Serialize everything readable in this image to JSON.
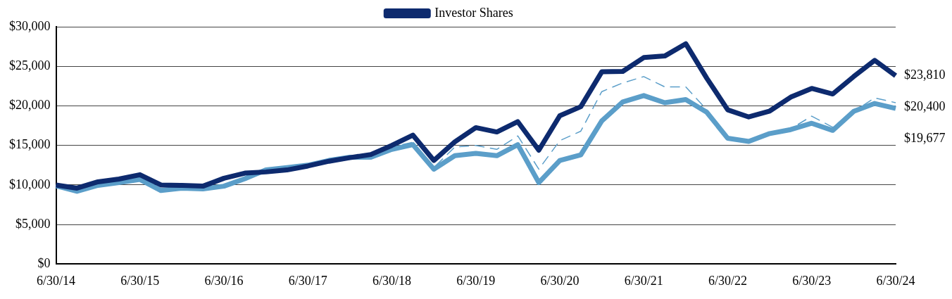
{
  "chart_data": {
    "type": "line",
    "categories": [
      "6/30/14",
      null,
      null,
      null,
      "6/30/15",
      null,
      null,
      null,
      "6/30/16",
      null,
      null,
      null,
      "6/30/17",
      null,
      null,
      null,
      "6/30/18",
      null,
      null,
      null,
      "6/30/19",
      null,
      null,
      null,
      "6/30/20",
      null,
      null,
      null,
      "6/30/21",
      null,
      null,
      null,
      "6/30/22",
      null,
      null,
      null,
      "6/30/23",
      null,
      null,
      null,
      "6/30/24"
    ],
    "series": [
      {
        "name": "Investor Shares",
        "color": "#0d2a6e",
        "values": [
          10000,
          9600,
          10400,
          10750,
          11300,
          10000,
          9950,
          9850,
          10850,
          11500,
          11650,
          11900,
          12400,
          13000,
          13450,
          13850,
          15000,
          16300,
          13100,
          15450,
          17250,
          16700,
          18000,
          14400,
          18750,
          19900,
          24300,
          24350,
          26100,
          26300,
          27850,
          23500,
          19500,
          18600,
          19350,
          21100,
          22200,
          21500,
          23700,
          25750,
          23810
        ]
      },
      {
        "color": "#5b9ec9",
        "values": [
          9900,
          9200,
          9950,
          10300,
          10700,
          9300,
          9600,
          9500,
          9850,
          10800,
          11900,
          12200,
          12500,
          13100,
          13500,
          13500,
          14500,
          15100,
          12000,
          13700,
          14000,
          13700,
          15100,
          10300,
          13100,
          13800,
          18100,
          20500,
          21300,
          20400,
          20800,
          19200,
          15900,
          15500,
          16500,
          17000,
          17800,
          16900,
          19300,
          20300,
          19677
        ]
      },
      {
        "color": "#5b9ec9",
        "line_style": "dashed",
        "values": [
          10000,
          9400,
          10000,
          10500,
          10700,
          9500,
          9700,
          9600,
          9900,
          10900,
          12000,
          12300,
          12600,
          13300,
          13700,
          13800,
          14800,
          15400,
          12200,
          14800,
          15000,
          14500,
          16200,
          12000,
          15600,
          16800,
          21800,
          22900,
          23700,
          22400,
          22400,
          19500,
          16000,
          15600,
          16600,
          17100,
          18700,
          17300,
          19300,
          21000,
          20400
        ]
      }
    ],
    "ylim": [
      0,
      30000
    ],
    "yticks": [
      {
        "value": 0,
        "label": "$0"
      },
      {
        "value": 5000,
        "label": "$5,000"
      },
      {
        "value": 10000,
        "label": "$10,000"
      },
      {
        "value": 15000,
        "label": "$15,000"
      },
      {
        "value": 20000,
        "label": "$20,000"
      },
      {
        "value": 25000,
        "label": "$25,000"
      },
      {
        "value": 30000,
        "label": "$30,000"
      }
    ],
    "grid": "y",
    "legend": "top",
    "marker": "none",
    "line_style": "solid",
    "annotations": [
      {
        "text": "$23,810",
        "x": "6/30/24",
        "y": 23810
      },
      {
        "text": "$20,400",
        "x": "6/30/24",
        "y": 20400
      },
      {
        "text": "$19,677",
        "x": "6/30/24",
        "y": 19677
      }
    ]
  }
}
